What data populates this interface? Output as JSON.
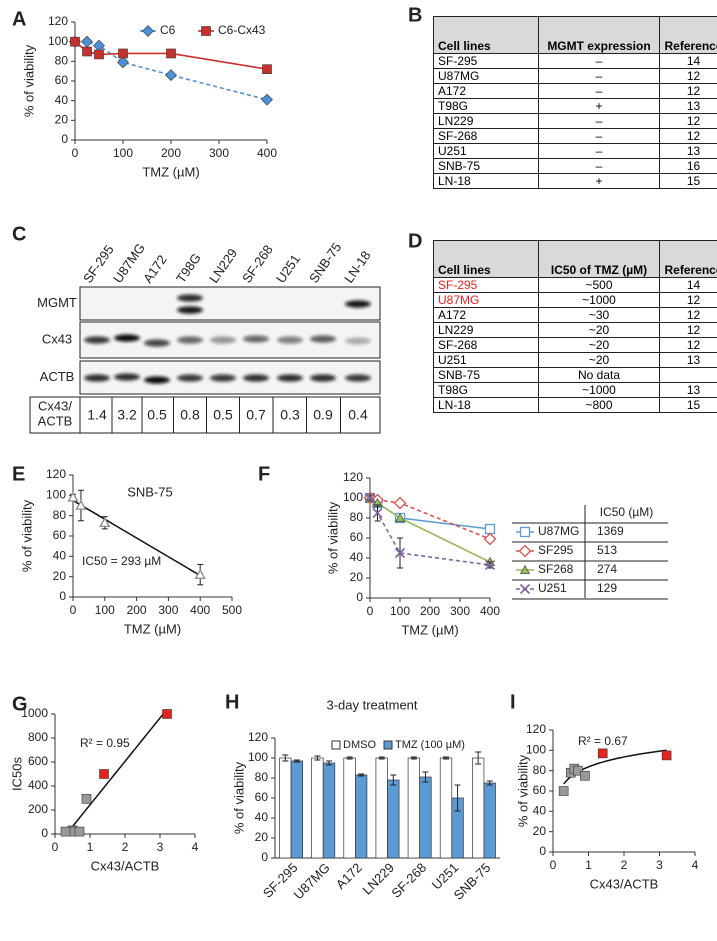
{
  "chart_data": [
    {
      "panel": "A",
      "type": "line",
      "x": [
        0,
        25,
        50,
        100,
        200,
        400
      ],
      "series": [
        {
          "name": "C6",
          "color": "#4f8fd6",
          "marker": "diamond",
          "dash": true,
          "values": [
            100,
            100,
            96,
            79,
            66,
            41
          ]
        },
        {
          "name": "C6-Cx43",
          "color": "#c9302c",
          "marker": "square",
          "dash": false,
          "values": [
            100,
            90,
            87,
            88,
            88,
            72
          ]
        }
      ],
      "xlim": [
        0,
        400
      ],
      "xticks": [
        0,
        100,
        200,
        300,
        400
      ],
      "ylim": [
        0,
        120
      ],
      "yticks": [
        0,
        20,
        40,
        60,
        80,
        100,
        120
      ],
      "xlabel": "TMZ (µM)",
      "ylabel": "% of viability",
      "legend": "top"
    },
    {
      "panel": "E",
      "type": "scatter",
      "title": "SNB-75",
      "annotation": "IC50 = 293 µM",
      "trendline": "linear",
      "series": [
        {
          "color": "#888888",
          "marker": "triangle-open",
          "x": [
            0,
            25,
            100,
            400
          ],
          "values": [
            98,
            90,
            73,
            22
          ],
          "errors": [
            3,
            15,
            6,
            10
          ]
        }
      ],
      "xlim": [
        0,
        500
      ],
      "xticks": [
        0,
        100,
        200,
        300,
        400,
        500
      ],
      "ylim": [
        0,
        120
      ],
      "yticks": [
        0,
        20,
        40,
        60,
        80,
        100,
        120
      ],
      "xlabel": "TMZ (µM)",
      "ylabel": "% of viability"
    },
    {
      "panel": "F",
      "type": "line",
      "x": [
        0,
        25,
        100,
        400
      ],
      "legend_header": "IC50 (µM)",
      "series": [
        {
          "name": "U87MG",
          "ic50": 1369,
          "color": "#5b9bd5",
          "marker": "square-open",
          "dash": false,
          "values": [
            100,
            95,
            80,
            69
          ]
        },
        {
          "name": "SF295",
          "ic50": 513,
          "color": "#d9534f",
          "marker": "diamond-open",
          "dash": true,
          "values": [
            100,
            98,
            95,
            59
          ]
        },
        {
          "name": "SF268",
          "ic50": 274,
          "color": "#9bbb59",
          "marker": "triangle",
          "dash": false,
          "values": [
            100,
            95,
            80,
            36
          ]
        },
        {
          "name": "U251",
          "ic50": 129,
          "color": "#8064a2",
          "marker": "x",
          "dash": true,
          "values": [
            100,
            85,
            45,
            33
          ],
          "errors": [
            2,
            8,
            15,
            3
          ]
        }
      ],
      "xlim": [
        0,
        400
      ],
      "xticks": [
        0,
        100,
        200,
        300,
        400
      ],
      "ylim": [
        0,
        120
      ],
      "yticks": [
        0,
        20,
        40,
        60,
        80,
        100,
        120
      ],
      "xlabel": "TMZ (µM)",
      "ylabel": "% of viability",
      "legend": "table"
    },
    {
      "panel": "G",
      "type": "scatter",
      "annotation": "R² = 0.95",
      "trendline": "linear",
      "series": [
        {
          "color": "#999999",
          "marker": "square",
          "x": [
            0.5,
            0.5,
            0.7,
            0.3,
            0.9
          ],
          "values": [
            30,
            20,
            20,
            20,
            293
          ]
        },
        {
          "color": "#e8231f",
          "marker": "square",
          "x": [
            1.4,
            3.2
          ],
          "values": [
            500,
            1000
          ]
        }
      ],
      "xlim": [
        0,
        4
      ],
      "xticks": [
        0,
        1,
        2,
        3,
        4
      ],
      "ylim": [
        0,
        1000
      ],
      "yticks": [
        0,
        200,
        400,
        600,
        800,
        1000
      ],
      "xlabel": "Cx43/ACTB",
      "ylabel": "IC50s"
    },
    {
      "panel": "H",
      "type": "bar",
      "title": "3-day treatment",
      "categories": [
        "SF-295",
        "U87MG",
        "A172",
        "LN229",
        "SF-268",
        "U251",
        "SNB-75"
      ],
      "category_colors": [
        "#e8231f",
        "#e8231f",
        "#111111",
        "#111111",
        "#111111",
        "#111111",
        "#111111"
      ],
      "series": [
        {
          "name": "DMSO",
          "color": "#ffffff",
          "values": [
            100,
            100,
            100,
            100,
            100,
            100,
            100
          ],
          "errors": [
            3,
            2,
            1,
            1,
            1,
            1,
            6
          ]
        },
        {
          "name": "TMZ (100 µM)",
          "color": "#5b9bd5",
          "values": [
            97,
            95,
            83,
            78,
            81,
            60,
            75
          ],
          "errors": [
            1,
            2,
            1,
            5,
            5,
            13,
            2
          ]
        }
      ],
      "ylim": [
        0,
        120
      ],
      "yticks": [
        0,
        20,
        40,
        60,
        80,
        100,
        120
      ],
      "ylabel": "% of viability"
    },
    {
      "panel": "I",
      "type": "scatter",
      "annotation": "R² = 0.67",
      "trendline": "log",
      "series": [
        {
          "color": "#999999",
          "marker": "square",
          "x": [
            0.3,
            0.5,
            0.6,
            0.7,
            0.9
          ],
          "values": [
            60,
            78,
            82,
            80,
            75
          ]
        },
        {
          "color": "#e8231f",
          "marker": "square",
          "x": [
            1.4,
            3.2
          ],
          "values": [
            97,
            95
          ]
        }
      ],
      "xlim": [
        0,
        4
      ],
      "xticks": [
        0,
        1,
        2,
        3,
        4
      ],
      "ylim": [
        0,
        120
      ],
      "yticks": [
        0,
        20,
        40,
        60,
        80,
        100,
        120
      ],
      "xlabel": "Cx43/ACTB",
      "ylabel": "% of viability"
    }
  ],
  "tables": [
    {
      "panel": "B",
      "header": [
        "Cell lines",
        "MGMT expression",
        "Reference"
      ],
      "highlighted": [],
      "highlight_color": "#e8231f",
      "rows": [
        [
          "SF-295",
          "–",
          14
        ],
        [
          "U87MG",
          "–",
          12
        ],
        [
          "A172",
          "–",
          12
        ],
        [
          "T98G",
          "+",
          13
        ],
        [
          "LN229",
          "–",
          12
        ],
        [
          "SF-268",
          "–",
          12
        ],
        [
          "U251",
          "–",
          13
        ],
        [
          "SNB-75",
          "–",
          16
        ],
        [
          "LN-18",
          "+",
          15
        ]
      ]
    },
    {
      "panel": "D",
      "header": [
        "Cell lines",
        "IC50 of TMZ (µM)",
        "Reference"
      ],
      "highlighted": [
        0,
        1
      ],
      "highlight_color": "#e8231f",
      "rows": [
        [
          "SF-295",
          "~500",
          14
        ],
        [
          "U87MG",
          "~1000",
          12
        ],
        [
          "A172",
          "~30",
          12
        ],
        [
          "LN229",
          "~20",
          12
        ],
        [
          "SF-268",
          "~20",
          12
        ],
        [
          "U251",
          "~20",
          13
        ],
        [
          "SNB-75",
          "No data",
          null
        ],
        [
          "T98G",
          "~1000",
          13
        ],
        [
          "LN-18",
          "~800",
          15
        ]
      ]
    }
  ],
  "blot": {
    "panel": "C",
    "lanes": [
      "SF-295",
      "U87MG",
      "A172",
      "T98G",
      "LN229",
      "SF-268",
      "U251",
      "SNB-75",
      "LN-18"
    ],
    "highlighted": [
      0,
      1
    ],
    "highlight_color": "#e8231f",
    "rows": [
      "MGMT",
      "Cx43",
      "ACTB"
    ],
    "ratio_label": [
      "Cx43/",
      "ACTB"
    ],
    "ratios": [
      1.4,
      3.2,
      0.5,
      0.8,
      0.5,
      0.7,
      0.3,
      0.9,
      0.4
    ]
  }
}
